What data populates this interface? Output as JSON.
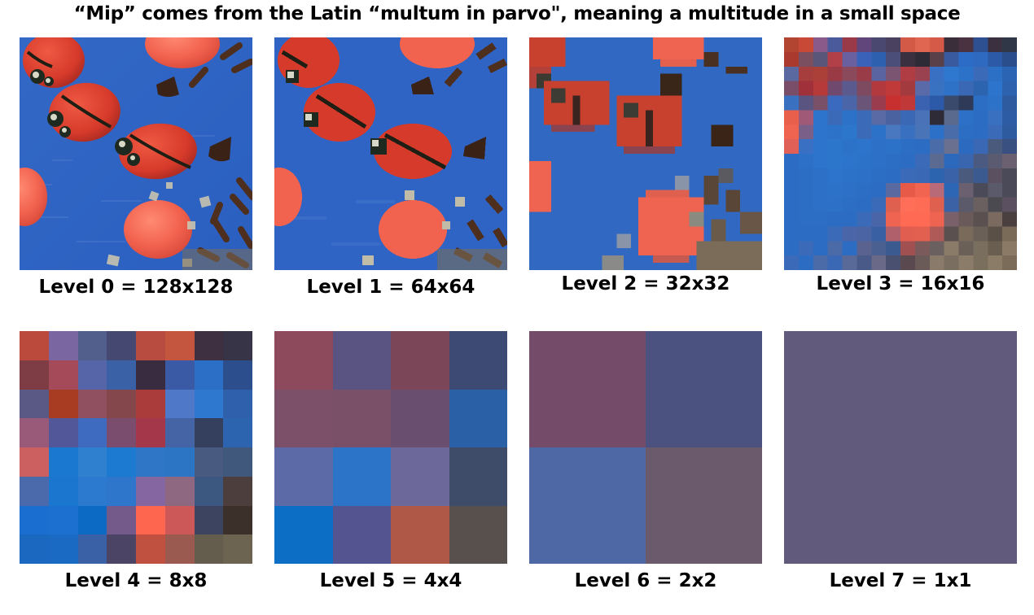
{
  "title": "“Mip” comes from the Latin “multum in parvo\", meaning a multitude in a small space",
  "levels": [
    {
      "label": "Level 0 = 128x128",
      "size": 128
    },
    {
      "label": "Level 1 = 64x64",
      "size": 64
    },
    {
      "label": "Level 2 = 32x32",
      "size": 32
    },
    {
      "label": "Level 3 = 16x16",
      "size": 16
    },
    {
      "label": "Level 4 = 8x8",
      "size": 8
    },
    {
      "label": "Level 5 = 4x4",
      "size": 4
    },
    {
      "label": "Level 6 = 2x2",
      "size": 2
    },
    {
      "label": "Level 7 = 1x1",
      "size": 1
    }
  ],
  "colors": {
    "background_blue": "#2f64c8",
    "ladybug_red": "#d83a2c",
    "candy_orange": "#f26a55",
    "chocolate": "#4a2e1e"
  },
  "pixels": {
    "level4": [
      [
        "#bc4a3c",
        "#7a66a0",
        "#525e8c",
        "#454870",
        "#b84c40",
        "#c4553e",
        "#3e3040",
        "#383448"
      ],
      [
        "#7e3c44",
        "#a44a58",
        "#5565a8",
        "#3a60a6",
        "#3a2c40",
        "#3a5aa6",
        "#2c6fc6",
        "#2c4e8c"
      ],
      [
        "#5a5885",
        "#a83c22",
        "#905060",
        "#84484c",
        "#aa3c3c",
        "#4f78c8",
        "#2e78d0",
        "#2e60ac"
      ],
      [
        "#985a78",
        "#52579a",
        "#3e6ac0",
        "#7a4c6e",
        "#a4384a",
        "#4464a6",
        "#34405e",
        "#2c64b0"
      ],
      [
        "#cc6060",
        "#1a78d0",
        "#3080d0",
        "#1c7ad0",
        "#2f76c6",
        "#2c74c4",
        "#485a80",
        "#40587c"
      ],
      [
        "#4b6aac",
        "#1a76cf",
        "#2c7ad0",
        "#2e76cc",
        "#8666a0",
        "#8e6880",
        "#3c5880",
        "#4c3e3c"
      ],
      [
        "#1a6ed0",
        "#1c70d0",
        "#0c6ac4",
        "#745a8a",
        "#ff6650",
        "#cc5858",
        "#3c4460",
        "#3c302a"
      ],
      [
        "#1a68c0",
        "#1a6ac4",
        "#3a60a6",
        "#4c4464",
        "#c05040",
        "#9a5a50",
        "#645c4c",
        "#6c6450"
      ]
    ],
    "level5": [
      [
        "#8c4a5c",
        "#5a5482",
        "#7a4658",
        "#3c4a74"
      ],
      [
        "#7c5068",
        "#7a5068",
        "#6a4e70",
        "#2a60a6"
      ],
      [
        "#5c6aa8",
        "#2c74c8",
        "#6c689a",
        "#3e4c6a"
      ],
      [
        "#0c6ec4",
        "#545490",
        "#b05848",
        "#58504c"
      ]
    ],
    "level6": [
      [
        "#744c6a",
        "#4c5280"
      ],
      [
        "#4e68a6",
        "#6a5a6c"
      ]
    ],
    "level7": [
      [
        "#625a7c"
      ]
    ]
  }
}
